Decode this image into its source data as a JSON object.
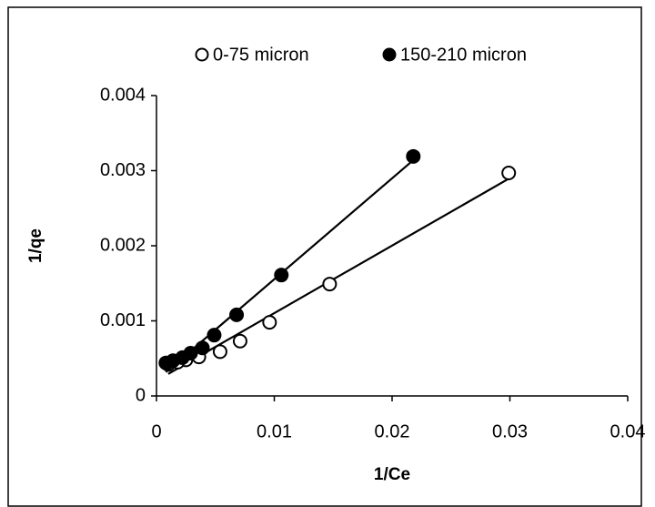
{
  "chart_data": {
    "type": "scatter",
    "xlabel": "1/Ce",
    "ylabel": "1/qe",
    "xlim": [
      0,
      0.04
    ],
    "xticks": [
      0,
      0.01,
      0.02,
      0.03,
      0.04
    ],
    "ylim": [
      0,
      0.004
    ],
    "yticks": [
      0,
      0.001,
      0.002,
      0.003,
      0.004
    ],
    "legend": "top",
    "trendline": true,
    "grid": false,
    "series": [
      {
        "name": "0-75 micron",
        "color": "#000000",
        "fill": "#ffffff",
        "x": [
          0.0299,
          0.0147,
          0.0096,
          0.0071,
          0.0054,
          0.0036,
          0.0025,
          0.0018,
          0.001
        ],
        "values": [
          0.00297,
          0.00149,
          0.00098,
          0.00073,
          0.00059,
          0.00052,
          0.00048,
          0.00045,
          0.00042
        ]
      },
      {
        "name": "150-210 micron",
        "color": "#000000",
        "fill": "#000000",
        "x": [
          0.0218,
          0.0106,
          0.0068,
          0.0049,
          0.0039,
          0.0029,
          0.0022,
          0.0014,
          0.0008
        ],
        "values": [
          0.00319,
          0.00161,
          0.00108,
          0.00081,
          0.00064,
          0.00057,
          0.00051,
          0.00047,
          0.00044
        ]
      }
    ]
  }
}
